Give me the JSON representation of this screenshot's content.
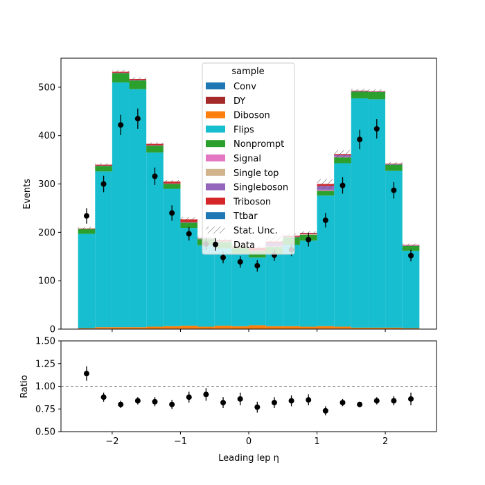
{
  "chart_data": [
    {
      "type": "bar",
      "stacked": true,
      "ylabel": "Events",
      "xlim": [
        -2.75,
        2.75
      ],
      "ylim": [
        0,
        560
      ],
      "yticks": [
        "0",
        "100",
        "200",
        "300",
        "400",
        "500"
      ],
      "bin_edges": [
        -2.5,
        -2.25,
        -2.0,
        -1.75,
        -1.5,
        -1.25,
        -1.0,
        -0.75,
        -0.5,
        -0.25,
        0.0,
        0.25,
        0.5,
        0.75,
        1.0,
        1.25,
        1.5,
        1.75,
        2.0,
        2.25,
        2.5
      ],
      "bin_centers": [
        -2.375,
        -2.125,
        -1.875,
        -1.625,
        -1.375,
        -1.125,
        -0.875,
        -0.625,
        -0.375,
        -0.125,
        0.125,
        0.375,
        0.625,
        0.875,
        1.125,
        1.375,
        1.625,
        1.875,
        2.125,
        2.375
      ],
      "legend": {
        "title": "sample",
        "position": "top-center",
        "entries": [
          "Conv",
          "DY",
          "Diboson",
          "Flips",
          "Nonprompt",
          "Signal",
          "Single top",
          "Singleboson",
          "Triboson",
          "Ttbar",
          "Stat. Unc.",
          "Data"
        ]
      },
      "series": [
        {
          "name": "Conv",
          "color": "#1f77b4",
          "values": [
            0,
            0,
            0,
            0,
            0,
            0,
            0,
            0,
            0,
            0,
            0,
            0,
            0,
            0,
            0,
            0,
            0,
            0,
            0,
            0
          ]
        },
        {
          "name": "DY",
          "color": "#a52a2a",
          "values": [
            0,
            1,
            0,
            0,
            0,
            1,
            1,
            0,
            1,
            0,
            0,
            0,
            0,
            0,
            1,
            1,
            0,
            0,
            0,
            0
          ]
        },
        {
          "name": "Diboson",
          "color": "#ff7f0e",
          "values": [
            2,
            3,
            4,
            4,
            5,
            5,
            6,
            5,
            6,
            6,
            8,
            6,
            6,
            5,
            5,
            4,
            3,
            3,
            3,
            2
          ]
        },
        {
          "name": "Flips",
          "color": "#17becf",
          "values": [
            195,
            322,
            506,
            492,
            360,
            284,
            202,
            168,
            160,
            150,
            140,
            150,
            168,
            178,
            270,
            338,
            474,
            472,
            324,
            160
          ]
        },
        {
          "name": "Nonprompt",
          "color": "#2ca02c",
          "values": [
            10,
            11,
            19,
            18,
            14,
            10,
            11,
            13,
            13,
            13,
            13,
            14,
            16,
            12,
            10,
            12,
            14,
            15,
            13,
            10
          ]
        },
        {
          "name": "Signal",
          "color": "#e377c2",
          "values": [
            0,
            0,
            0,
            0,
            0,
            0,
            0,
            0,
            0,
            0,
            0,
            0,
            0,
            0,
            2,
            1,
            0,
            0,
            0,
            0
          ]
        },
        {
          "name": "Single top",
          "color": "#d2b48c",
          "values": [
            0,
            0,
            0,
            0,
            0,
            0,
            0,
            1,
            1,
            1,
            0,
            1,
            0,
            1,
            0,
            0,
            0,
            0,
            0,
            0
          ]
        },
        {
          "name": "Singleboson",
          "color": "#9467bd",
          "values": [
            0,
            1,
            1,
            1,
            1,
            1,
            1,
            1,
            1,
            1,
            1,
            7,
            1,
            1,
            8,
            4,
            1,
            1,
            1,
            1
          ]
        },
        {
          "name": "Triboson",
          "color": "#d62728",
          "values": [
            1,
            2,
            2,
            2,
            3,
            4,
            6,
            0,
            2,
            1,
            6,
            3,
            2,
            2,
            4,
            2,
            1,
            1,
            1,
            1
          ]
        },
        {
          "name": "Ttbar",
          "color": "#1f77b4",
          "values": [
            0,
            0,
            0,
            0,
            0,
            0,
            0,
            0,
            0,
            0,
            0,
            0,
            0,
            0,
            0,
            0,
            0,
            0,
            0,
            0
          ]
        }
      ],
      "stat_unc": [
        3,
        3,
        4,
        4,
        3,
        3,
        5,
        3,
        4,
        4,
        4,
        12,
        4,
        3,
        10,
        8,
        4,
        4,
        3,
        3
      ],
      "data": {
        "name": "Data",
        "values": [
          234,
          300,
          422,
          435,
          316,
          240,
          197,
          176,
          148,
          139,
          131,
          153,
          164,
          185,
          225,
          297,
          392,
          414,
          287,
          152
        ],
        "errors": [
          16,
          17,
          21,
          21,
          18,
          16,
          14,
          13,
          12,
          12,
          12,
          12,
          13,
          14,
          15,
          17,
          20,
          20,
          17,
          12
        ]
      }
    },
    {
      "type": "scatter",
      "xlabel": "Leading lep η",
      "ylabel": "Ratio",
      "xlim": [
        -2.75,
        2.75
      ],
      "ylim": [
        0.5,
        1.5
      ],
      "xticks": [
        "−2",
        "−1",
        "0",
        "1",
        "2"
      ],
      "xtick_values": [
        -2,
        -1,
        0,
        1,
        2
      ],
      "yticks": [
        "0.50",
        "0.75",
        "1.00",
        "1.25",
        "1.50"
      ],
      "ytick_values": [
        0.5,
        0.75,
        1.0,
        1.25,
        1.5
      ],
      "reference_line": 1.0,
      "x": [
        -2.375,
        -2.125,
        -1.875,
        -1.625,
        -1.375,
        -1.125,
        -0.875,
        -0.625,
        -0.375,
        -0.125,
        0.125,
        0.375,
        0.625,
        0.875,
        1.125,
        1.375,
        1.625,
        1.875,
        2.125,
        2.375
      ],
      "values": [
        1.14,
        0.88,
        0.8,
        0.84,
        0.83,
        0.8,
        0.88,
        0.91,
        0.82,
        0.86,
        0.77,
        0.82,
        0.84,
        0.85,
        0.73,
        0.82,
        0.8,
        0.84,
        0.84,
        0.86
      ],
      "errors": [
        0.08,
        0.05,
        0.04,
        0.04,
        0.05,
        0.05,
        0.06,
        0.07,
        0.06,
        0.07,
        0.06,
        0.06,
        0.06,
        0.06,
        0.05,
        0.04,
        0.03,
        0.04,
        0.05,
        0.07
      ]
    }
  ]
}
